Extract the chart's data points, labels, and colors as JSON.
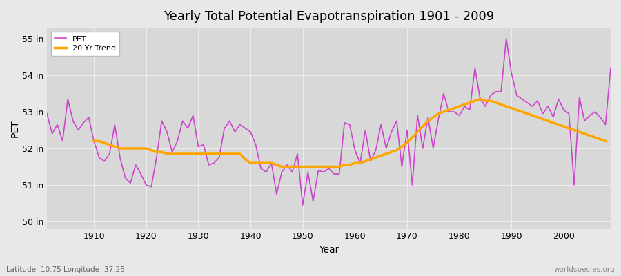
{
  "title": "Yearly Total Potential Evapotranspiration 1901 - 2009",
  "xlabel": "Year",
  "ylabel": "PET",
  "subtitle_left": "Latitude -10.75 Longitude -37.25",
  "watermark": "worldspecies.org",
  "pet_color": "#cc44cc",
  "trend_color": "#ffa500",
  "bg_color": "#e8e8e8",
  "plot_bg_color": "#d8d8d8",
  "ylim": [
    49.8,
    55.3
  ],
  "yticks": [
    50,
    51,
    52,
    53,
    54,
    55
  ],
  "ytick_labels": [
    "50 in",
    "51 in",
    "52 in",
    "53 in",
    "54 in",
    "55 in"
  ],
  "years": [
    1901,
    1902,
    1903,
    1904,
    1905,
    1906,
    1907,
    1908,
    1909,
    1910,
    1911,
    1912,
    1913,
    1914,
    1915,
    1916,
    1917,
    1918,
    1919,
    1920,
    1921,
    1922,
    1923,
    1924,
    1925,
    1926,
    1927,
    1928,
    1929,
    1930,
    1931,
    1932,
    1933,
    1934,
    1935,
    1936,
    1937,
    1938,
    1939,
    1940,
    1941,
    1942,
    1943,
    1944,
    1945,
    1946,
    1947,
    1948,
    1949,
    1950,
    1951,
    1952,
    1953,
    1954,
    1955,
    1956,
    1957,
    1958,
    1959,
    1960,
    1961,
    1962,
    1963,
    1964,
    1965,
    1966,
    1967,
    1968,
    1969,
    1970,
    1971,
    1972,
    1973,
    1974,
    1975,
    1976,
    1977,
    1978,
    1979,
    1980,
    1981,
    1982,
    1983,
    1984,
    1985,
    1986,
    1987,
    1988,
    1989,
    1990,
    1991,
    1992,
    1993,
    1994,
    1995,
    1996,
    1997,
    1998,
    1999,
    2000,
    2001,
    2002,
    2003,
    2004,
    2005,
    2006,
    2007,
    2008,
    2009
  ],
  "pet_values": [
    52.95,
    52.4,
    52.65,
    52.2,
    53.35,
    52.75,
    52.5,
    52.7,
    52.85,
    52.2,
    51.75,
    51.65,
    51.85,
    52.65,
    51.75,
    51.2,
    51.05,
    51.55,
    51.3,
    51.0,
    50.95,
    51.75,
    52.75,
    52.45,
    51.9,
    52.2,
    52.75,
    52.55,
    52.9,
    52.05,
    52.1,
    51.55,
    51.6,
    51.75,
    52.55,
    52.75,
    52.45,
    52.65,
    52.55,
    52.45,
    52.1,
    51.45,
    51.35,
    51.6,
    50.75,
    51.35,
    51.55,
    51.35,
    51.85,
    50.45,
    51.35,
    50.55,
    51.4,
    51.35,
    51.45,
    51.3,
    51.3,
    52.7,
    52.65,
    51.95,
    51.6,
    52.5,
    51.65,
    51.95,
    52.65,
    52.0,
    52.45,
    52.75,
    51.5,
    52.5,
    51.0,
    52.9,
    52.0,
    52.85,
    52.0,
    52.8,
    53.5,
    53.0,
    53.0,
    52.9,
    53.15,
    53.05,
    54.2,
    53.35,
    53.15,
    53.45,
    53.55,
    53.55,
    55.0,
    54.05,
    53.45,
    53.35,
    53.25,
    53.15,
    53.3,
    52.95,
    53.15,
    52.85,
    53.35,
    53.05,
    52.95,
    51.0,
    53.4,
    52.75,
    52.9,
    53.0,
    52.85,
    52.65,
    54.2
  ],
  "trend_values": [
    null,
    null,
    null,
    null,
    null,
    null,
    null,
    null,
    null,
    52.2,
    52.2,
    52.15,
    52.1,
    52.05,
    52.0,
    52.0,
    52.0,
    52.0,
    52.0,
    52.0,
    51.95,
    51.9,
    51.9,
    51.85,
    51.85,
    51.85,
    51.85,
    51.85,
    51.85,
    51.85,
    51.85,
    51.85,
    51.85,
    51.85,
    51.85,
    51.85,
    51.85,
    51.85,
    51.7,
    51.6,
    51.6,
    51.6,
    51.6,
    51.6,
    51.55,
    51.5,
    51.5,
    51.5,
    51.5,
    51.5,
    51.5,
    51.5,
    51.5,
    51.5,
    51.5,
    51.5,
    51.5,
    51.55,
    51.55,
    51.6,
    51.6,
    51.65,
    51.7,
    51.75,
    51.8,
    51.85,
    51.9,
    51.95,
    52.05,
    52.15,
    52.3,
    52.45,
    52.6,
    52.75,
    52.85,
    52.95,
    53.0,
    53.05,
    53.1,
    53.15,
    53.2,
    53.25,
    53.3,
    53.35,
    53.3,
    53.3,
    53.25,
    53.2,
    53.15,
    53.1,
    53.05,
    53.0,
    52.95,
    52.9,
    52.85,
    52.8,
    52.75,
    52.7,
    52.65,
    52.6,
    52.55,
    52.5,
    52.45,
    52.4,
    52.35,
    52.3,
    52.25,
    52.2
  ]
}
